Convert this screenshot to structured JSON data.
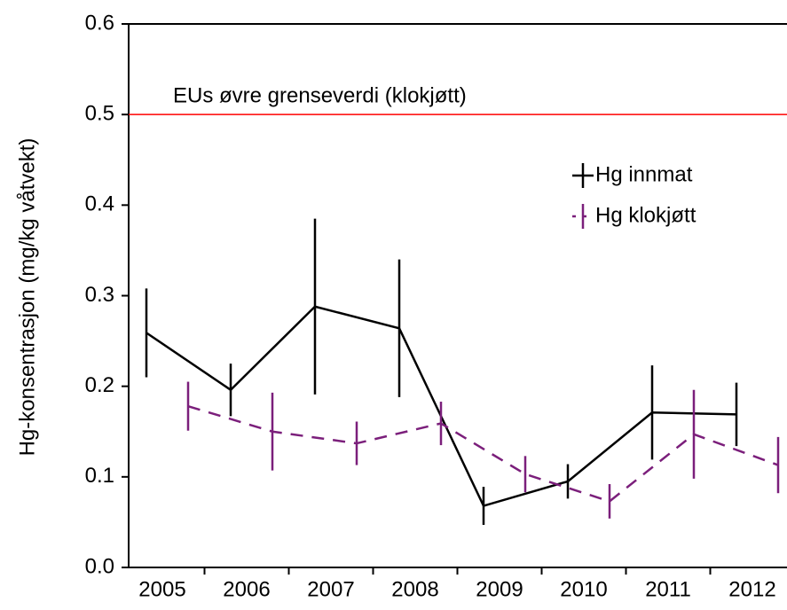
{
  "chart_data": {
    "type": "line",
    "ylabel": "Hg-konsentrasjon (mg/kg våtvekt)",
    "categories": [
      "2005",
      "2006",
      "2007",
      "2008",
      "2009",
      "2010",
      "2011",
      "2012"
    ],
    "series": [
      {
        "name": "Hg innmat",
        "color": "#000000",
        "dash": false,
        "values": [
          0.259,
          0.196,
          0.288,
          0.264,
          0.068,
          0.095,
          0.171,
          0.169
        ],
        "errors": [
          0.049,
          0.029,
          0.097,
          0.076,
          0.021,
          0.019,
          0.052,
          0.035
        ]
      },
      {
        "name": "Hg klokjøtt",
        "color": "#7b1f7b",
        "dash": true,
        "values": [
          0.178,
          0.15,
          0.137,
          0.159,
          0.103,
          0.073,
          0.147,
          0.113
        ],
        "errors": [
          0.027,
          0.043,
          0.024,
          0.024,
          0.02,
          0.019,
          0.049,
          0.031
        ]
      }
    ],
    "hline": {
      "value": 0.5,
      "label": "EUs øvre grenseverdi (klokjøtt)",
      "color": "#ff0000"
    },
    "ylim": [
      0,
      0.6
    ],
    "yticks": [
      {
        "value": 0,
        "label": "0.0"
      },
      0.1,
      0.2,
      0.3,
      0.4,
      0.5,
      0.6
    ],
    "legend": "upper right"
  }
}
